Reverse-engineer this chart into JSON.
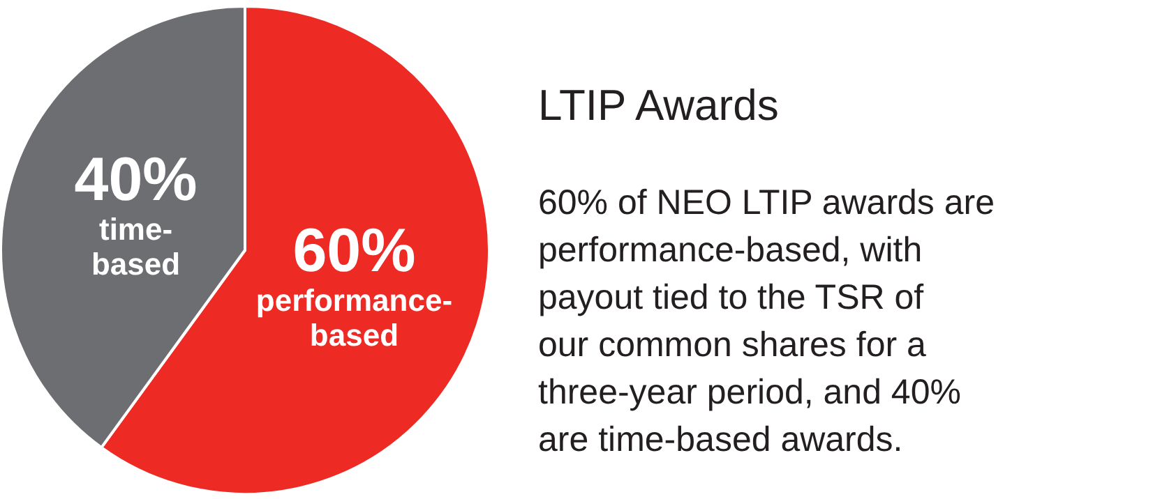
{
  "chart_data": {
    "type": "pie",
    "title": "LTIP Awards",
    "categories": [
      "performance-based",
      "time-based"
    ],
    "values": [
      60,
      40
    ],
    "colors": [
      "#ee2a24",
      "#6d6e71"
    ],
    "value_labels": [
      "60%",
      "40%"
    ],
    "annotations": [
      "60% of NEO LTIP awards are performance-based, with payout tied to the TSR of our common shares for a three-year period, and 40% are time-based awards."
    ]
  }
}
